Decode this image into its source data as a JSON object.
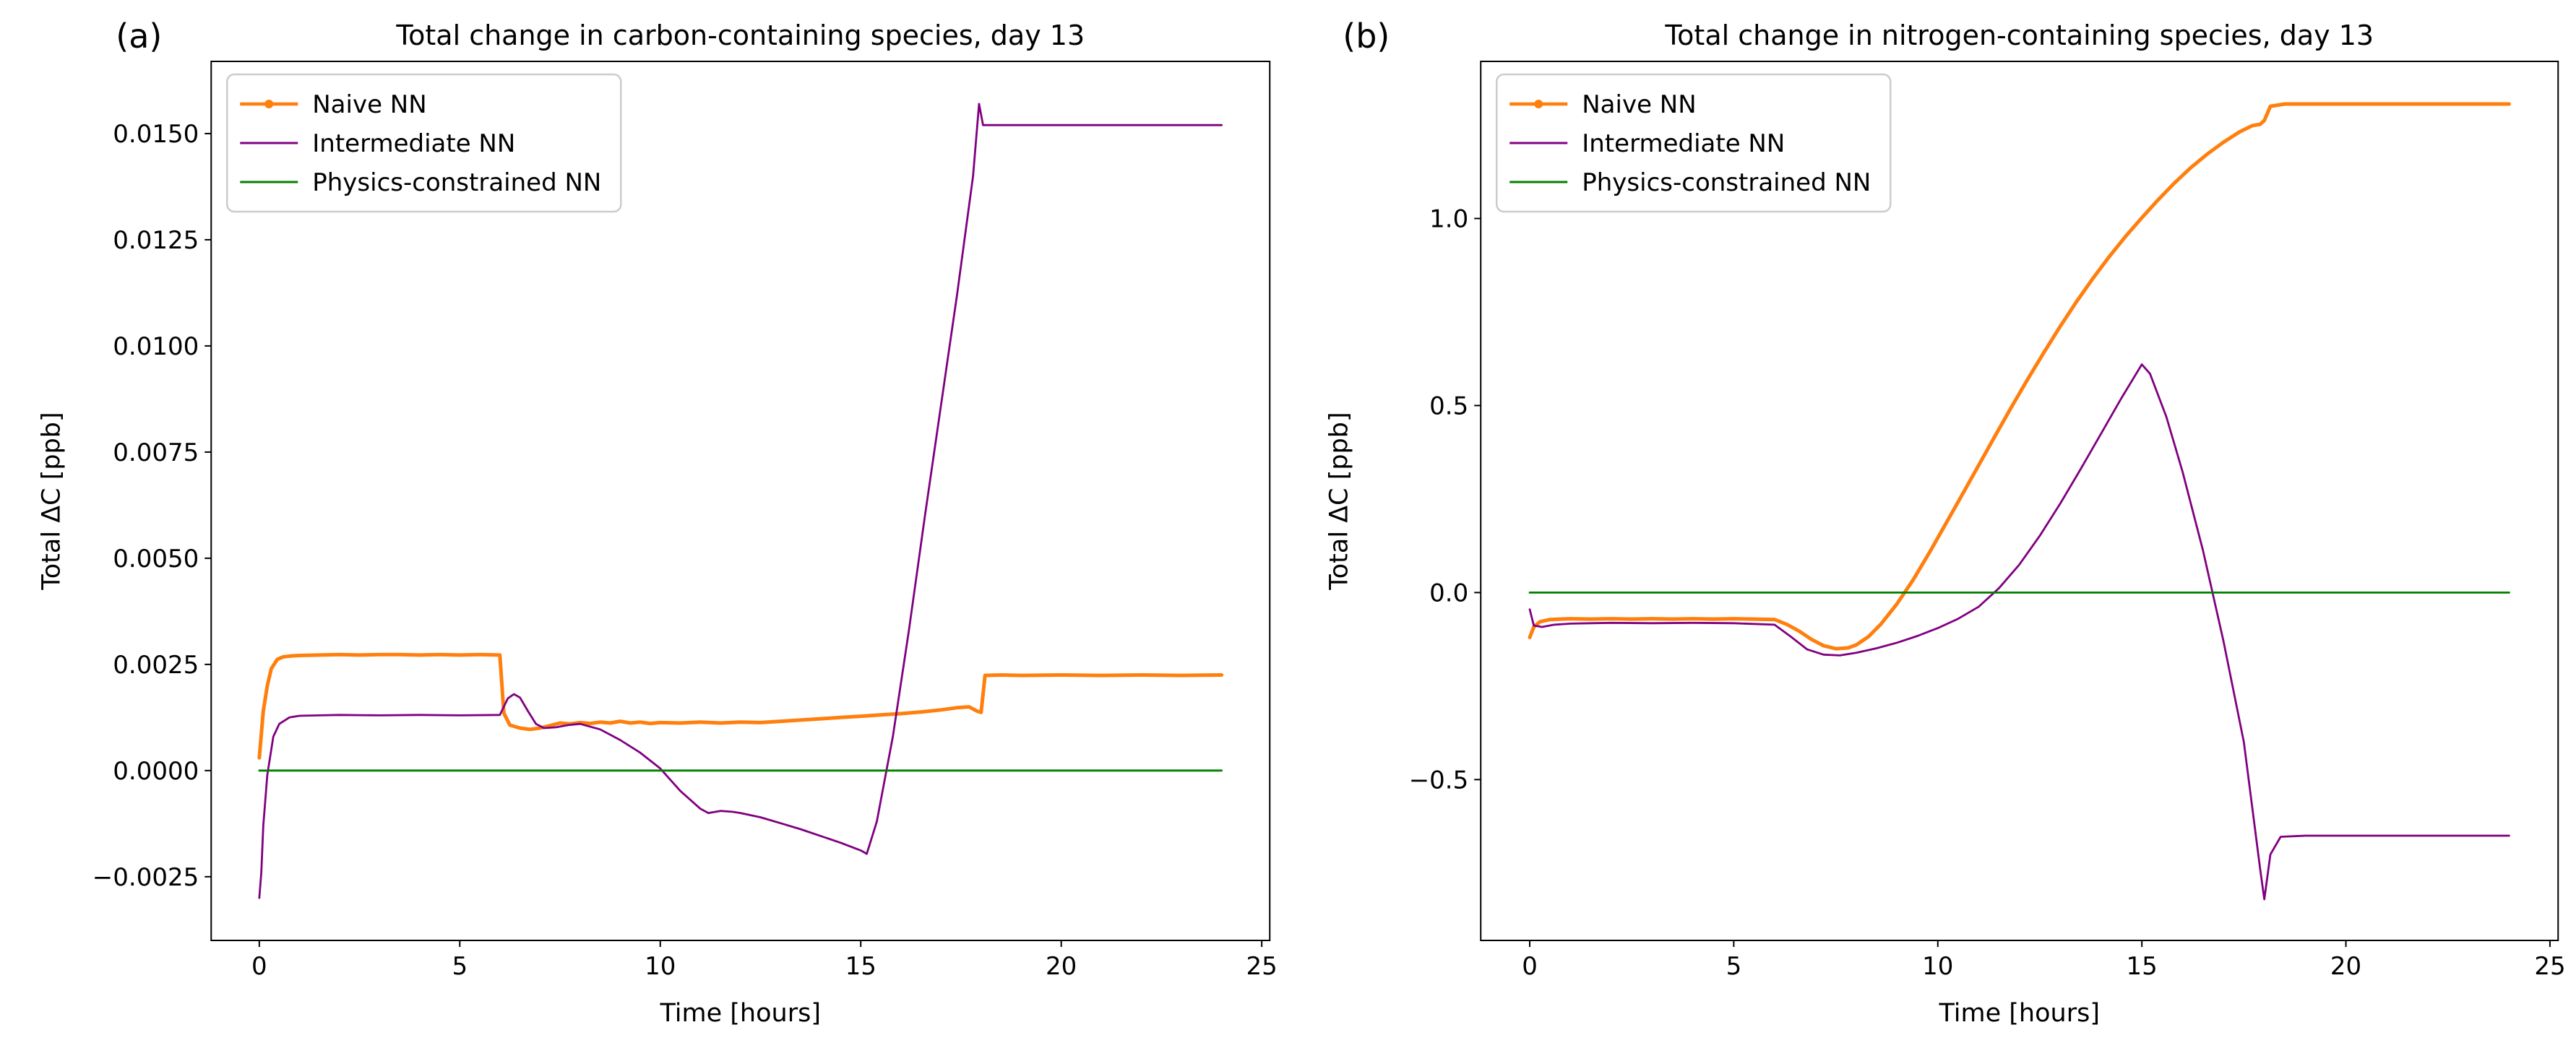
{
  "figure": {
    "background": "#ffffff",
    "panel_count": 2
  },
  "chart_data": [
    {
      "type": "line",
      "panel_label": "(a)",
      "title": "Total change in carbon-containing species, day 13",
      "xlabel": "Time [hours]",
      "ylabel": "Total ΔC [ppb]",
      "xlim": [
        -1.2,
        25.2
      ],
      "ylim": [
        -0.004,
        0.0167
      ],
      "grid": false,
      "legend_position": "upper-left",
      "xticks": {
        "values": [
          0,
          5,
          10,
          15,
          20,
          25
        ],
        "labels": [
          "0",
          "5",
          "10",
          "15",
          "20",
          "25"
        ]
      },
      "yticks": {
        "values": [
          -0.0025,
          0.0,
          0.0025,
          0.005,
          0.0075,
          0.01,
          0.0125,
          0.015
        ],
        "labels": [
          "−0.0025",
          "0.0000",
          "0.0025",
          "0.0050",
          "0.0075",
          "0.0100",
          "0.0125",
          "0.0150"
        ]
      },
      "series": [
        {
          "name": "Naive NN",
          "color": "#ff7f0e",
          "marker": true,
          "x": [
            0,
            0.1,
            0.2,
            0.3,
            0.45,
            0.6,
            0.8,
            1.0,
            1.5,
            2.0,
            2.5,
            3.0,
            3.5,
            4.0,
            4.5,
            5.0,
            5.5,
            6.0,
            6.1,
            6.25,
            6.5,
            6.75,
            7.0,
            7.25,
            7.5,
            7.75,
            8.0,
            8.25,
            8.5,
            8.75,
            9.0,
            9.25,
            9.5,
            9.75,
            10.0,
            10.5,
            11.0,
            11.5,
            12.0,
            12.5,
            13.0,
            13.5,
            14.0,
            14.5,
            15.0,
            15.5,
            16.0,
            16.5,
            17.0,
            17.4,
            17.7,
            17.9,
            18.0,
            18.1,
            18.5,
            19,
            20,
            21,
            22,
            23,
            24
          ],
          "y": [
            0.0003,
            0.0014,
            0.002,
            0.0024,
            0.00262,
            0.00268,
            0.0027,
            0.00271,
            0.00272,
            0.00273,
            0.00272,
            0.00273,
            0.00273,
            0.00272,
            0.00273,
            0.00272,
            0.00273,
            0.00272,
            0.00135,
            0.00107,
            0.001,
            0.00097,
            0.001,
            0.00106,
            0.00112,
            0.0011,
            0.00113,
            0.00111,
            0.00114,
            0.00112,
            0.00116,
            0.00112,
            0.00114,
            0.00111,
            0.00113,
            0.00112,
            0.00114,
            0.00112,
            0.00114,
            0.00113,
            0.00116,
            0.00119,
            0.00122,
            0.00125,
            0.00128,
            0.00131,
            0.00134,
            0.00138,
            0.00143,
            0.00148,
            0.0015,
            0.0014,
            0.00137,
            0.00224,
            0.00225,
            0.00224,
            0.00225,
            0.00224,
            0.00225,
            0.00224,
            0.00225
          ]
        },
        {
          "name": "Intermediate NN",
          "color": "#800080",
          "marker": false,
          "x": [
            0,
            0.05,
            0.1,
            0.2,
            0.35,
            0.5,
            0.75,
            1.0,
            1.5,
            2,
            3,
            4,
            5,
            6,
            6.2,
            6.35,
            6.5,
            6.7,
            6.9,
            7.1,
            7.4,
            7.7,
            8.0,
            8.5,
            9.0,
            9.5,
            10.0,
            10.5,
            11.0,
            11.2,
            11.5,
            11.8,
            12.0,
            12.5,
            13.0,
            13.5,
            14.0,
            14.5,
            15.0,
            15.15,
            15.4,
            15.8,
            16.2,
            16.6,
            17.0,
            17.4,
            17.8,
            17.95,
            18.05,
            18.3,
            19,
            20,
            21,
            22,
            23,
            24
          ],
          "y": [
            -0.003,
            -0.0024,
            -0.0013,
            -0.0001,
            0.0008,
            0.0011,
            0.00125,
            0.00129,
            0.0013,
            0.00131,
            0.0013,
            0.00131,
            0.0013,
            0.00131,
            0.0017,
            0.0018,
            0.00172,
            0.0014,
            0.0011,
            0.001,
            0.00102,
            0.00107,
            0.0011,
            0.00097,
            0.00072,
            0.00042,
            5e-05,
            -0.00048,
            -0.0009,
            -0.001,
            -0.00095,
            -0.00097,
            -0.001,
            -0.0011,
            -0.00124,
            -0.00138,
            -0.00154,
            -0.0017,
            -0.00188,
            -0.00196,
            -0.0012,
            0.0008,
            0.0033,
            0.006,
            0.0086,
            0.0112,
            0.014,
            0.0157,
            0.0152,
            0.0152,
            0.0152,
            0.0152,
            0.0152,
            0.0152,
            0.0152,
            0.0152
          ]
        },
        {
          "name": "Physics-constrained NN",
          "color": "#008000",
          "marker": false,
          "x": [
            0,
            24
          ],
          "y": [
            0,
            0
          ]
        }
      ]
    },
    {
      "type": "line",
      "panel_label": "(b)",
      "title": "Total change in nitrogen-containing species, day 13",
      "xlabel": "Time [hours]",
      "ylabel": "Total ΔC [ppb]",
      "xlim": [
        -1.2,
        25.2
      ],
      "ylim": [
        -0.93,
        1.42
      ],
      "grid": false,
      "legend_position": "upper-left",
      "xticks": {
        "values": [
          0,
          5,
          10,
          15,
          20,
          25
        ],
        "labels": [
          "0",
          "5",
          "10",
          "15",
          "20",
          "25"
        ]
      },
      "yticks": {
        "values": [
          -0.5,
          0.0,
          0.5,
          1.0
        ],
        "labels": [
          "−0.5",
          "0.0",
          "0.5",
          "1.0"
        ]
      },
      "series": [
        {
          "name": "Naive NN",
          "color": "#ff7f0e",
          "marker": true,
          "x": [
            0,
            0.1,
            0.25,
            0.5,
            1,
            1.5,
            2,
            2.5,
            3,
            3.5,
            4,
            4.5,
            5,
            5.5,
            6,
            6.3,
            6.6,
            6.9,
            7.2,
            7.5,
            7.8,
            8.0,
            8.3,
            8.6,
            9.0,
            9.4,
            9.8,
            10.2,
            10.6,
            11.0,
            11.4,
            11.8,
            12.2,
            12.6,
            13.0,
            13.4,
            13.8,
            14.2,
            14.6,
            15.0,
            15.4,
            15.8,
            16.2,
            16.6,
            17.0,
            17.4,
            17.7,
            17.9,
            18.0,
            18.15,
            18.5,
            19,
            20,
            21,
            22,
            23,
            24
          ],
          "y": [
            -0.12,
            -0.092,
            -0.078,
            -0.072,
            -0.07,
            -0.071,
            -0.07,
            -0.071,
            -0.07,
            -0.071,
            -0.07,
            -0.071,
            -0.07,
            -0.071,
            -0.072,
            -0.085,
            -0.103,
            -0.125,
            -0.142,
            -0.15,
            -0.148,
            -0.14,
            -0.118,
            -0.085,
            -0.03,
            0.035,
            0.108,
            0.185,
            0.262,
            0.34,
            0.418,
            0.495,
            0.57,
            0.642,
            0.712,
            0.778,
            0.84,
            0.898,
            0.952,
            1.002,
            1.05,
            1.095,
            1.136,
            1.172,
            1.204,
            1.232,
            1.248,
            1.252,
            1.262,
            1.3,
            1.306,
            1.306,
            1.306,
            1.306,
            1.306,
            1.306,
            1.306
          ]
        },
        {
          "name": "Intermediate NN",
          "color": "#800080",
          "marker": false,
          "x": [
            0,
            0.1,
            0.3,
            0.6,
            1,
            1.5,
            2,
            3,
            4,
            5,
            6,
            6.4,
            6.8,
            7.2,
            7.6,
            8.0,
            8.5,
            9.0,
            9.5,
            10.0,
            10.5,
            11.0,
            11.5,
            12.0,
            12.5,
            13.0,
            13.5,
            14.0,
            14.5,
            15.0,
            15.2,
            15.6,
            16.0,
            16.5,
            17.0,
            17.5,
            17.9,
            18.0,
            18.15,
            18.4,
            19,
            20,
            21,
            22,
            23,
            24
          ],
          "y": [
            -0.045,
            -0.088,
            -0.092,
            -0.086,
            -0.083,
            -0.082,
            -0.081,
            -0.082,
            -0.081,
            -0.082,
            -0.086,
            -0.118,
            -0.152,
            -0.166,
            -0.168,
            -0.161,
            -0.149,
            -0.134,
            -0.116,
            -0.095,
            -0.07,
            -0.038,
            0.012,
            0.075,
            0.152,
            0.238,
            0.33,
            0.425,
            0.52,
            0.61,
            0.585,
            0.47,
            0.322,
            0.112,
            -0.13,
            -0.4,
            -0.74,
            -0.82,
            -0.7,
            -0.653,
            -0.65,
            -0.65,
            -0.65,
            -0.65,
            -0.65,
            -0.65
          ]
        },
        {
          "name": "Physics-constrained NN",
          "color": "#008000",
          "marker": false,
          "x": [
            0,
            24
          ],
          "y": [
            0,
            0
          ]
        }
      ]
    }
  ]
}
